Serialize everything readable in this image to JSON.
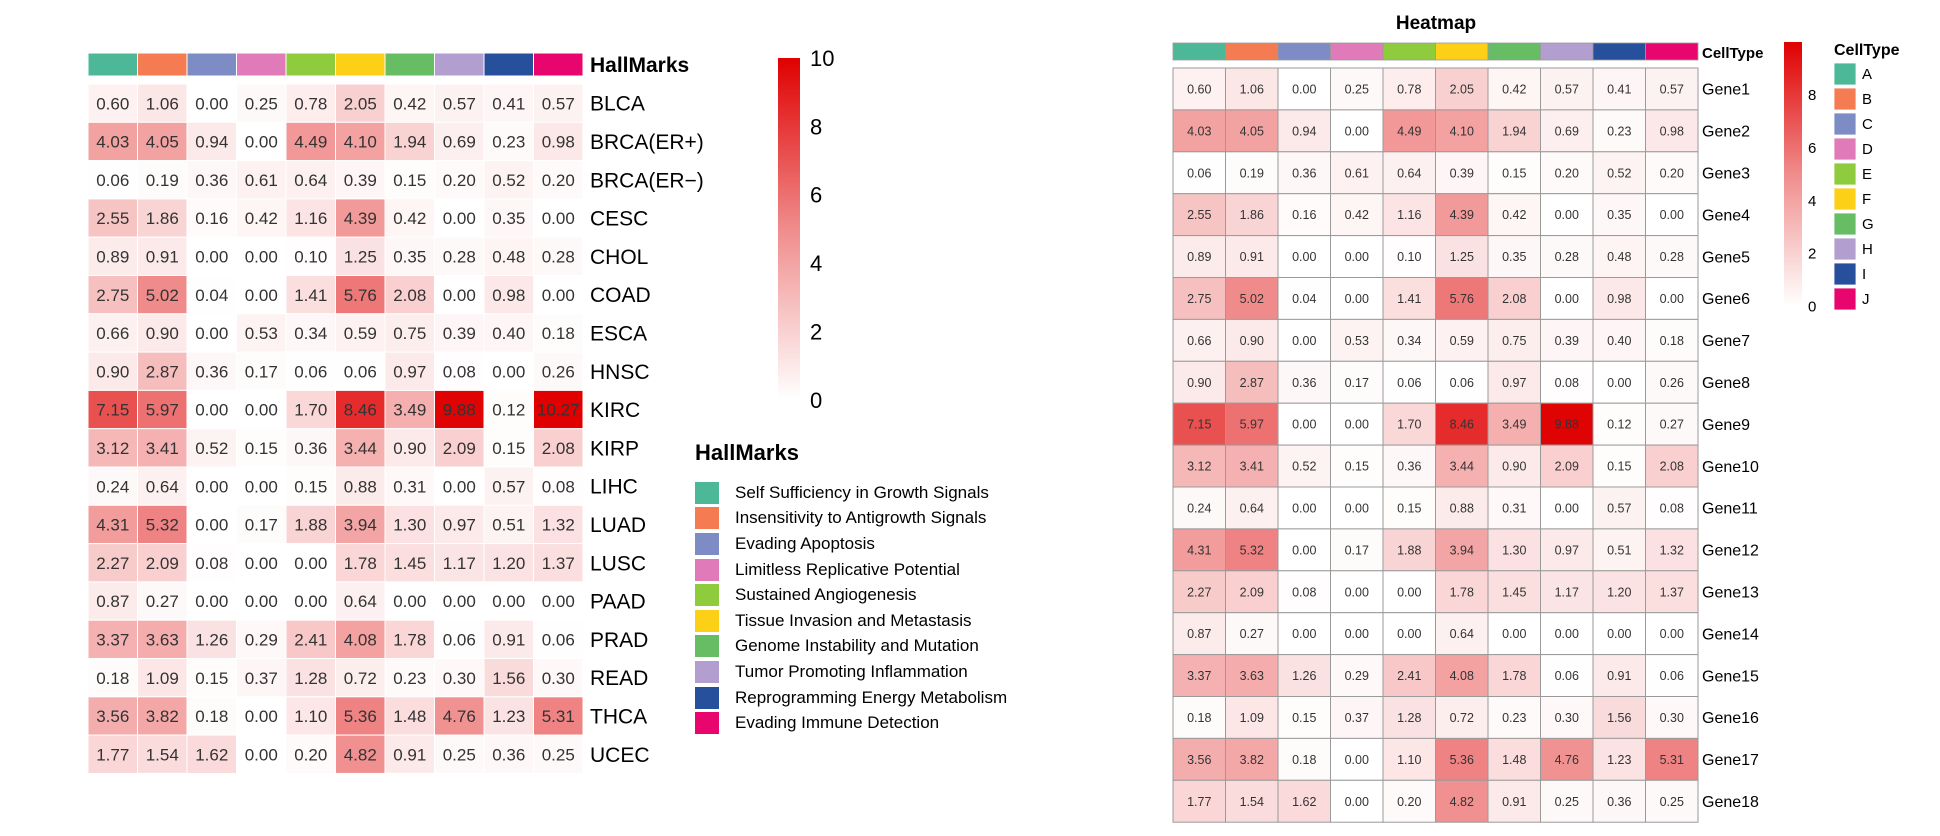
{
  "chart_data": [
    {
      "type": "heatmap",
      "title": "",
      "annotation_title": "HallMarks",
      "rows": [
        "BLCA",
        "BRCA(ER+)",
        "BRCA(ER−)",
        "CESC",
        "CHOL",
        "COAD",
        "ESCA",
        "HNSC",
        "KIRC",
        "KIRP",
        "LIHC",
        "LUAD",
        "LUSC",
        "PAAD",
        "PRAD",
        "READ",
        "THCA",
        "UCEC"
      ],
      "values": [
        [
          0.6,
          1.06,
          0.0,
          0.25,
          0.78,
          2.05,
          0.42,
          0.57,
          0.41,
          0.57
        ],
        [
          4.03,
          4.05,
          0.94,
          0.0,
          4.49,
          4.1,
          1.94,
          0.69,
          0.23,
          0.98
        ],
        [
          0.06,
          0.19,
          0.36,
          0.61,
          0.64,
          0.39,
          0.15,
          0.2,
          0.52,
          0.2
        ],
        [
          2.55,
          1.86,
          0.16,
          0.42,
          1.16,
          4.39,
          0.42,
          0.0,
          0.35,
          0.0
        ],
        [
          0.89,
          0.91,
          0.0,
          0.0,
          0.1,
          1.25,
          0.35,
          0.28,
          0.48,
          0.28
        ],
        [
          2.75,
          5.02,
          0.04,
          0.0,
          1.41,
          5.76,
          2.08,
          0.0,
          0.98,
          0.0
        ],
        [
          0.66,
          0.9,
          0.0,
          0.53,
          0.34,
          0.59,
          0.75,
          0.39,
          0.4,
          0.18
        ],
        [
          0.9,
          2.87,
          0.36,
          0.17,
          0.06,
          0.06,
          0.97,
          0.08,
          0.0,
          0.26
        ],
        [
          7.15,
          5.97,
          0.0,
          0.0,
          1.7,
          8.46,
          3.49,
          9.88,
          0.12,
          10.27
        ],
        [
          3.12,
          3.41,
          0.52,
          0.15,
          0.36,
          3.44,
          0.9,
          2.09,
          0.15,
          2.08
        ],
        [
          0.24,
          0.64,
          0.0,
          0.0,
          0.15,
          0.88,
          0.31,
          0.0,
          0.57,
          0.08
        ],
        [
          4.31,
          5.32,
          0.0,
          0.17,
          1.88,
          3.94,
          1.3,
          0.97,
          0.51,
          1.32
        ],
        [
          2.27,
          2.09,
          0.08,
          0.0,
          0.0,
          1.78,
          1.45,
          1.17,
          1.2,
          1.37
        ],
        [
          0.87,
          0.27,
          0.0,
          0.0,
          0.0,
          0.64,
          0.0,
          0.0,
          0.0,
          0.0
        ],
        [
          3.37,
          3.63,
          1.26,
          0.29,
          2.41,
          4.08,
          1.78,
          0.06,
          0.91,
          0.06
        ],
        [
          0.18,
          1.09,
          0.15,
          0.37,
          1.28,
          0.72,
          0.23,
          0.3,
          1.56,
          0.3
        ],
        [
          3.56,
          3.82,
          0.18,
          0.0,
          1.1,
          5.36,
          1.48,
          4.76,
          1.23,
          5.31
        ],
        [
          1.77,
          1.54,
          1.62,
          0.0,
          0.2,
          4.82,
          0.91,
          0.25,
          0.36,
          0.25
        ]
      ],
      "colorbar": {
        "ticks": [
          "0",
          "2",
          "4",
          "6",
          "8",
          "10"
        ],
        "range": [
          0,
          10
        ]
      },
      "legend_title": "HallMarks",
      "legend_labels": [
        "Self Sufficiency in Growth Signals",
        "Insensitivity to Antigrowth Signals",
        "Evading Apoptosis",
        "Limitless Replicative Potential",
        "Sustained Angiogenesis",
        "Tissue Invasion and Metastasis",
        "Genome Instability and Mutation",
        "Tumor Promoting Inflammation",
        "Reprogramming Energy Metabolism",
        "Evading Immune Detection"
      ]
    },
    {
      "type": "heatmap",
      "title": "Heatmap",
      "annotation_title": "CellType",
      "rows": [
        "Gene1",
        "Gene2",
        "Gene3",
        "Gene4",
        "Gene5",
        "Gene6",
        "Gene7",
        "Gene8",
        "Gene9",
        "Gene10",
        "Gene11",
        "Gene12",
        "Gene13",
        "Gene14",
        "Gene15",
        "Gene16",
        "Gene17",
        "Gene18"
      ],
      "values": [
        [
          0.6,
          1.06,
          0.0,
          0.25,
          0.78,
          2.05,
          0.42,
          0.57,
          0.41,
          0.57
        ],
        [
          4.03,
          4.05,
          0.94,
          0.0,
          4.49,
          4.1,
          1.94,
          0.69,
          0.23,
          0.98
        ],
        [
          0.06,
          0.19,
          0.36,
          0.61,
          0.64,
          0.39,
          0.15,
          0.2,
          0.52,
          0.2
        ],
        [
          2.55,
          1.86,
          0.16,
          0.42,
          1.16,
          4.39,
          0.42,
          0.0,
          0.35,
          0.0
        ],
        [
          0.89,
          0.91,
          0.0,
          0.0,
          0.1,
          1.25,
          0.35,
          0.28,
          0.48,
          0.28
        ],
        [
          2.75,
          5.02,
          0.04,
          0.0,
          1.41,
          5.76,
          2.08,
          0.0,
          0.98,
          0.0
        ],
        [
          0.66,
          0.9,
          0.0,
          0.53,
          0.34,
          0.59,
          0.75,
          0.39,
          0.4,
          0.18
        ],
        [
          0.9,
          2.87,
          0.36,
          0.17,
          0.06,
          0.06,
          0.97,
          0.08,
          0.0,
          0.26
        ],
        [
          7.15,
          5.97,
          0.0,
          0.0,
          1.7,
          8.46,
          3.49,
          9.88,
          0.12,
          0.27
        ],
        [
          3.12,
          3.41,
          0.52,
          0.15,
          0.36,
          3.44,
          0.9,
          2.09,
          0.15,
          2.08
        ],
        [
          0.24,
          0.64,
          0.0,
          0.0,
          0.15,
          0.88,
          0.31,
          0.0,
          0.57,
          0.08
        ],
        [
          4.31,
          5.32,
          0.0,
          0.17,
          1.88,
          3.94,
          1.3,
          0.97,
          0.51,
          1.32
        ],
        [
          2.27,
          2.09,
          0.08,
          0.0,
          0.0,
          1.78,
          1.45,
          1.17,
          1.2,
          1.37
        ],
        [
          0.87,
          0.27,
          0.0,
          0.0,
          0.0,
          0.64,
          0.0,
          0.0,
          0.0,
          0.0
        ],
        [
          3.37,
          3.63,
          1.26,
          0.29,
          2.41,
          4.08,
          1.78,
          0.06,
          0.91,
          0.06
        ],
        [
          0.18,
          1.09,
          0.15,
          0.37,
          1.28,
          0.72,
          0.23,
          0.3,
          1.56,
          0.3
        ],
        [
          3.56,
          3.82,
          0.18,
          0.0,
          1.1,
          5.36,
          1.48,
          4.76,
          1.23,
          5.31
        ],
        [
          1.77,
          1.54,
          1.62,
          0.0,
          0.2,
          4.82,
          0.91,
          0.25,
          0.36,
          0.25
        ]
      ],
      "colorbar": {
        "ticks": [
          "0",
          "2",
          "4",
          "6",
          "8"
        ],
        "range": [
          0,
          10
        ]
      },
      "legend_title": "CellType",
      "legend_labels": [
        "A",
        "B",
        "C",
        "D",
        "E",
        "F",
        "G",
        "H",
        "I",
        "J"
      ]
    }
  ],
  "colors": {
    "categories": [
      "#4db898",
      "#f57c52",
      "#7d8cc4",
      "#e07ab8",
      "#8fcc3d",
      "#fdd018",
      "#66bd63",
      "#b29fcf",
      "#27509c",
      "#e8066e"
    ],
    "scale_low": "#ffffff",
    "scale_mid": "#f08c8c",
    "scale_high": "#e00000",
    "grid_border": "#9a9a9a"
  }
}
